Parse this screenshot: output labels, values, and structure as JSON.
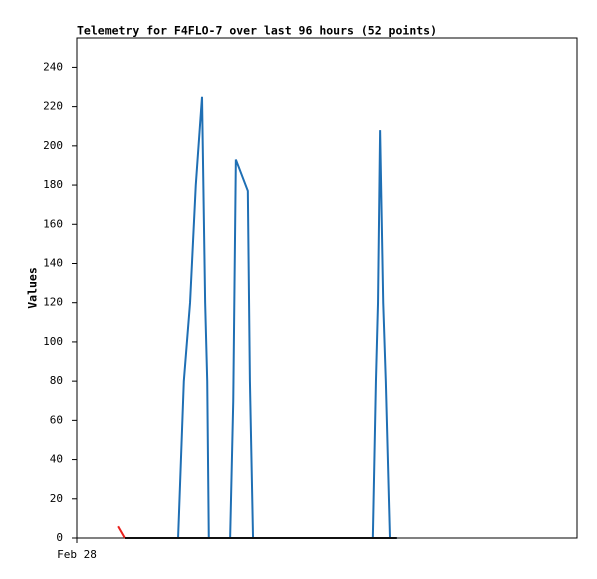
{
  "chart_data": {
    "type": "line",
    "title": "Telemetry for F4FLO-7 over last 96 hours (52 points)",
    "y_label": "Values",
    "xlim": [
      0,
      96
    ],
    "xticks": [
      {
        "value": 0,
        "label": "Feb 28"
      }
    ],
    "ylim": [
      0,
      255
    ],
    "yticks": [
      0,
      20,
      40,
      60,
      80,
      100,
      120,
      140,
      160,
      180,
      200,
      220,
      240
    ],
    "grid": false,
    "series": [
      {
        "color": "#1f6fb4",
        "x": [
          9.2,
          19.4,
          20.5,
          21.7,
          22.8,
          24.0,
          24.6,
          25.0,
          25.3,
          29.4,
          30.0,
          30.5,
          32.8,
          33.2,
          33.8,
          56.8,
          57.4,
          57.8,
          58.2,
          58.8,
          59.3,
          60.1,
          61.4
        ],
        "values": [
          0,
          0,
          80,
          120,
          180,
          225,
          120,
          80,
          0,
          0,
          70,
          193,
          177,
          80,
          0,
          0,
          80,
          120,
          208,
          120,
          80,
          0,
          0
        ]
      },
      {
        "color": "#e8201c",
        "x": [
          7.9,
          9.2
        ],
        "values": [
          6,
          0
        ]
      },
      {
        "color": "#111111",
        "x": [
          9.2,
          61.4
        ],
        "values": [
          0,
          0
        ]
      }
    ]
  }
}
